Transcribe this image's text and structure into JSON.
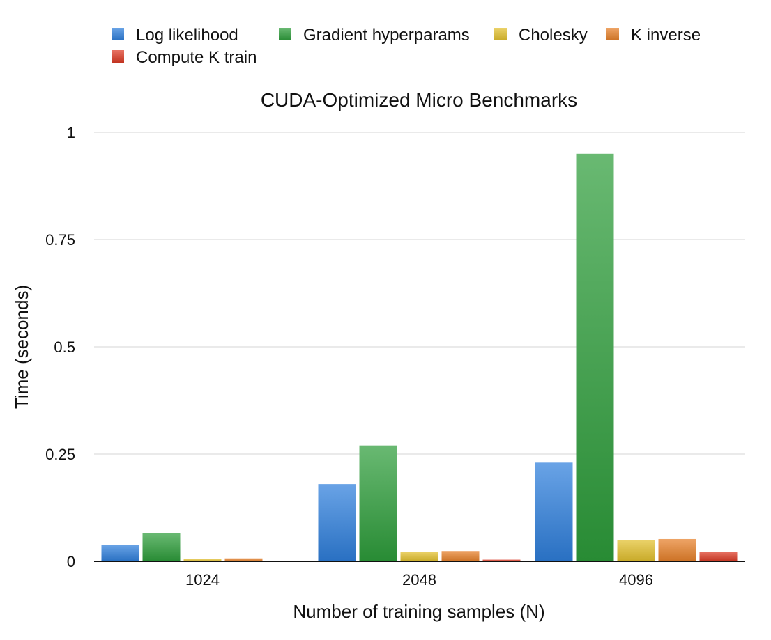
{
  "chart_data": {
    "type": "bar",
    "title": "CUDA-Optimized Micro Benchmarks",
    "xlabel": "Number of training samples (N)",
    "ylabel": "Time (seconds)",
    "categories": [
      "1024",
      "2048",
      "4096"
    ],
    "ylim": [
      0,
      1
    ],
    "yticks": [
      0,
      0.25,
      0.5,
      0.75,
      1
    ],
    "ytick_labels": [
      "0",
      "0.25",
      "0.5",
      "0.75",
      "1"
    ],
    "grid": true,
    "legend_position": "top",
    "series": [
      {
        "name": "Log likelihood",
        "color": "#2f7fdc",
        "values": [
          0.038,
          0.18,
          0.23
        ]
      },
      {
        "name": "Gradient hyperparams",
        "color": "#2e9e3b",
        "values": [
          0.065,
          0.27,
          0.95
        ]
      },
      {
        "name": "Cholesky",
        "color": "#e3c12e",
        "values": [
          0.005,
          0.022,
          0.05
        ]
      },
      {
        "name": "K inverse",
        "color": "#e8812a",
        "values": [
          0.007,
          0.024,
          0.052
        ]
      },
      {
        "name": "Compute K train",
        "color": "#dd3b26",
        "values": [
          0.0,
          0.004,
          0.022
        ]
      }
    ]
  }
}
